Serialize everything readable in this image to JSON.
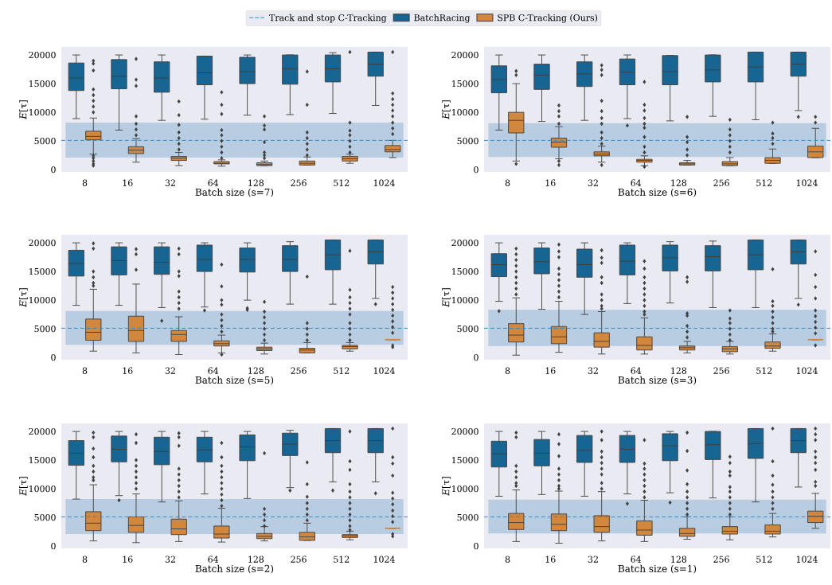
{
  "chart_data": [
    {
      "type": "box",
      "xlabel": "Batch size (s=7)",
      "ylabel": "*E*[τ]",
      "categories": [
        "8",
        "16",
        "32",
        "64",
        "128",
        "256",
        "512",
        "1024"
      ],
      "ylim": [
        -400,
        21400
      ],
      "yticks": [
        0,
        5000,
        10000,
        15000,
        20000
      ],
      "legend": "top",
      "marker": "diamond",
      "ref_lines": [
        {
          "axis": "y",
          "value": 5100,
          "label": "Track and stop C-Tracking",
          "color": "#3a8bbf",
          "line_style": "dashed"
        }
      ],
      "bands": [
        {
          "axis": "y",
          "from": 2100,
          "to": 8200,
          "color": "#b9cde2"
        }
      ],
      "series": [
        {
          "name": "BatchRacing",
          "color": "#176593",
          "boxes": [
            {
              "low": 8900,
              "q1": 13800,
              "median": 16000,
              "q3": 18600,
              "high": 20000
            },
            {
              "low": 6900,
              "q1": 14100,
              "median": 16300,
              "q3": 19200,
              "high": 20000
            },
            {
              "low": 8600,
              "q1": 13500,
              "median": 16000,
              "q3": 18800,
              "high": 20000
            },
            {
              "low": 8800,
              "q1": 14800,
              "median": 16900,
              "q3": 19800,
              "high": 19800
            },
            {
              "low": 9500,
              "q1": 15000,
              "median": 17100,
              "q3": 19600,
              "high": 20000
            },
            {
              "low": 9600,
              "q1": 14900,
              "median": 17600,
              "q3": 20000,
              "high": 20000
            },
            {
              "low": 9800,
              "q1": 15300,
              "median": 17600,
              "q3": 20000,
              "high": 20400
            },
            {
              "low": 11200,
              "q1": 16300,
              "median": 18400,
              "q3": 20500,
              "high": 20500
            }
          ]
        },
        {
          "name": "SPB C-Tracking (Ours)",
          "color": "#d1873e",
          "boxes": [
            {
              "low": 2700,
              "q1": 5200,
              "median": 5800,
              "q3": 6700,
              "high": 9000,
              "outliers": [
                19000,
                18500,
                17300,
                14000,
                13000,
                12000,
                11000,
                10000,
                2400,
                2000,
                1500,
                1000,
                700
              ]
            },
            {
              "low": 1300,
              "q1": 2800,
              "median": 3400,
              "q3": 4000,
              "high": 5400,
              "outliers": [
                19300,
                15700,
                14600,
                9300,
                8000,
                7000,
                6000
              ]
            },
            {
              "low": 700,
              "q1": 1600,
              "median": 2000,
              "q3": 2300,
              "high": 3000,
              "outliers": [
                11900,
                9500,
                7800,
                6500,
                5500,
                4500,
                3500
              ]
            },
            {
              "low": 600,
              "q1": 1000,
              "median": 1100,
              "q3": 1400,
              "high": 1700,
              "outliers": [
                13500,
                11300,
                9700,
                6900,
                6000,
                5000,
                4000,
                3000,
                2000
              ]
            },
            {
              "low": 700,
              "q1": 700,
              "median": 900,
              "q3": 1200,
              "high": 1500,
              "outliers": [
                9300,
                7700,
                7000,
                4800,
                3000,
                2500,
                2000
              ]
            },
            {
              "low": 800,
              "q1": 800,
              "median": 1100,
              "q3": 1500,
              "high": 2200,
              "outliers": [
                17100,
                11300,
                6500,
                5500,
                4500,
                3500,
                2500
              ]
            },
            {
              "low": 1100,
              "q1": 1500,
              "median": 1900,
              "q3": 2300,
              "high": 2700,
              "outliers": [
                20500,
                8200,
                6800,
                6000,
                5000,
                4000,
                3000
              ]
            },
            {
              "low": 2100,
              "q1": 3100,
              "median": 3500,
              "q3": 4200,
              "high": 5100,
              "outliers": [
                20500,
                13300,
                12300,
                11300,
                10300,
                9300,
                8200,
                7200,
                6200
              ]
            }
          ]
        }
      ]
    },
    {
      "type": "box",
      "xlabel": "Batch size (s=6)",
      "ylabel": "*E*[τ]",
      "categories": [
        "8",
        "16",
        "32",
        "64",
        "128",
        "256",
        "512",
        "1024"
      ],
      "ylim": [
        -400,
        21400
      ],
      "yticks": [
        0,
        5000,
        10000,
        15000,
        20000
      ],
      "marker": "diamond",
      "ref_lines": [
        {
          "axis": "y",
          "value": 5100,
          "color": "#3a8bbf",
          "line_style": "dashed"
        }
      ],
      "bands": [
        {
          "axis": "y",
          "from": 2200,
          "to": 8100,
          "color": "#b9cde2"
        }
      ],
      "series": [
        {
          "color": "#176593",
          "boxes": [
            {
              "low": 6900,
              "q1": 13400,
              "median": 15700,
              "q3": 18100,
              "high": 20000
            },
            {
              "low": 8400,
              "q1": 14000,
              "median": 16500,
              "q3": 18400,
              "high": 20000
            },
            {
              "low": 8600,
              "q1": 14500,
              "median": 16700,
              "q3": 18800,
              "high": 20000
            },
            {
              "low": 8900,
              "q1": 14800,
              "median": 17000,
              "q3": 19300,
              "high": 20000,
              "outliers": [
                7700
              ]
            },
            {
              "low": 8500,
              "q1": 14800,
              "median": 17100,
              "q3": 19900,
              "high": 19900
            },
            {
              "low": 9300,
              "q1": 15300,
              "median": 17400,
              "q3": 20000,
              "high": 20000
            },
            {
              "low": 8700,
              "q1": 15300,
              "median": 17900,
              "q3": 20500,
              "high": 20500
            },
            {
              "low": 10300,
              "q1": 16300,
              "median": 18400,
              "q3": 20500,
              "high": 20500,
              "outliers": [
                9200
              ]
            }
          ]
        },
        {
          "color": "#d1873e",
          "boxes": [
            {
              "low": 1500,
              "q1": 6400,
              "median": 8600,
              "q3": 10000,
              "high": 15000,
              "outliers": [
                17200,
                16500,
                1000
              ]
            },
            {
              "low": 1900,
              "q1": 3900,
              "median": 4800,
              "q3": 5500,
              "high": 7500,
              "outliers": [
                11200,
                10200,
                9300,
                8000,
                1500,
                800
              ]
            },
            {
              "low": 1300,
              "q1": 2400,
              "median": 2700,
              "q3": 3100,
              "high": 4100,
              "outliers": [
                18200,
                17400,
                16500,
                12000,
                10200,
                9000,
                8000,
                6500,
                5500,
                4500,
                800
              ]
            },
            {
              "low": 700,
              "q1": 1300,
              "median": 1600,
              "q3": 1800,
              "high": 2400,
              "outliers": [
                15300,
                11300,
                10300,
                9000,
                8000,
                7300,
                5700,
                4000,
                3000,
                500
              ]
            },
            {
              "low": 800,
              "q1": 800,
              "median": 1000,
              "q3": 1200,
              "high": 1600,
              "outliers": [
                9200,
                5700,
                4800,
                3500,
                2500
              ]
            },
            {
              "low": 700,
              "q1": 700,
              "median": 1000,
              "q3": 1400,
              "high": 2100,
              "outliers": [
                8700,
                7000,
                6000,
                5000,
                4000,
                3000
              ]
            },
            {
              "low": 1100,
              "q1": 1100,
              "median": 1600,
              "q3": 2100,
              "high": 3600,
              "outliers": [
                8200,
                6300,
                5500,
                4500
              ]
            },
            {
              "low": 2100,
              "q1": 2100,
              "median": 3100,
              "q3": 4100,
              "high": 7200,
              "outliers": [
                9200,
                8200
              ]
            }
          ]
        }
      ]
    },
    {
      "type": "box",
      "xlabel": "Batch size (s=5)",
      "ylabel": "*E*[τ]",
      "categories": [
        "8",
        "16",
        "32",
        "64",
        "128",
        "256",
        "512",
        "1024"
      ],
      "ylim": [
        -400,
        21400
      ],
      "yticks": [
        0,
        5000,
        10000,
        15000,
        20000
      ],
      "marker": "diamond",
      "ref_lines": [
        {
          "axis": "y",
          "value": 5100,
          "color": "#3a8bbf",
          "line_style": "dashed"
        }
      ],
      "bands": [
        {
          "axis": "y",
          "from": 2200,
          "to": 8100,
          "color": "#b9cde2"
        }
      ],
      "series": [
        {
          "color": "#176593",
          "boxes": [
            {
              "low": 9100,
              "q1": 14200,
              "median": 16400,
              "q3": 18700,
              "high": 20000
            },
            {
              "low": 9100,
              "q1": 14400,
              "median": 16900,
              "q3": 19300,
              "high": 20000
            },
            {
              "low": 8700,
              "q1": 14500,
              "median": 16600,
              "q3": 19300,
              "high": 20000,
              "outliers": [
                6400
              ]
            },
            {
              "low": 8800,
              "q1": 15000,
              "median": 17100,
              "q3": 19600,
              "high": 20000,
              "outliers": [
                8200
              ]
            },
            {
              "low": 10000,
              "q1": 14900,
              "median": 17100,
              "q3": 19100,
              "high": 20000,
              "outliers": [
                8600,
                8300
              ]
            },
            {
              "low": 9300,
              "q1": 15000,
              "median": 17100,
              "q3": 19500,
              "high": 20200
            },
            {
              "low": 9300,
              "q1": 15300,
              "median": 17900,
              "q3": 20500,
              "high": 20500
            },
            {
              "low": 10300,
              "q1": 16300,
              "median": 18400,
              "q3": 20500,
              "high": 20500,
              "outliers": [
                9300
              ]
            }
          ]
        },
        {
          "color": "#d1873e",
          "boxes": [
            {
              "low": 1100,
              "q1": 3000,
              "median": 4400,
              "q3": 6700,
              "high": 11900,
              "outliers": [
                19900,
                19000,
                15000,
                14000,
                13000,
                12500
              ]
            },
            {
              "low": 800,
              "q1": 2800,
              "median": 4700,
              "q3": 7200,
              "high": 12800,
              "outliers": [
                18900,
                18000,
                15300
              ]
            },
            {
              "low": 500,
              "q1": 2800,
              "median": 4000,
              "q3": 4700,
              "high": 7100,
              "outliers": [
                19000,
                18000,
                15000,
                14200,
                11500,
                10500,
                9500,
                8500
              ]
            },
            {
              "low": 800,
              "q1": 2000,
              "median": 2400,
              "q3": 2900,
              "high": 3900,
              "outliers": [
                16200,
                12400,
                10000,
                9200,
                7500,
                6500,
                5500,
                4500,
                500
              ]
            },
            {
              "low": 600,
              "q1": 1200,
              "median": 1500,
              "q3": 1800,
              "high": 2500,
              "outliers": [
                9700,
                8000,
                7000,
                6000,
                5000,
                4000,
                3000
              ]
            },
            {
              "low": 800,
              "q1": 800,
              "median": 1300,
              "q3": 1600,
              "high": 2600,
              "outliers": [
                14100,
                6000,
                5000,
                4000,
                3000
              ]
            },
            {
              "low": 1100,
              "q1": 1500,
              "median": 1900,
              "q3": 2100,
              "high": 2600,
              "outliers": [
                18600,
                11800,
                10500,
                9500,
                8500,
                7500,
                6000,
                5000,
                4000,
                3000
              ]
            },
            {
              "low": 3100,
              "q1": 3100,
              "median": 3100,
              "q3": 3100,
              "high": 3100,
              "outliers": [
                12300,
                11300,
                10300,
                9300,
                8300,
                7300,
                6300,
                5300,
                4300,
                2100,
                1800
              ]
            }
          ]
        }
      ]
    },
    {
      "type": "box",
      "xlabel": "Batch size (s=3)",
      "ylabel": "*E*[τ]",
      "categories": [
        "8",
        "16",
        "32",
        "64",
        "128",
        "256",
        "512",
        "1024"
      ],
      "ylim": [
        -400,
        21400
      ],
      "yticks": [
        0,
        5000,
        10000,
        15000,
        20000
      ],
      "marker": "diamond",
      "ref_lines": [
        {
          "axis": "y",
          "value": 5100,
          "color": "#3a8bbf",
          "line_style": "dashed"
        }
      ],
      "bands": [
        {
          "axis": "y",
          "from": 2000,
          "to": 8300,
          "color": "#b9cde2"
        }
      ],
      "series": [
        {
          "color": "#176593",
          "boxes": [
            {
              "low": 9800,
              "q1": 14100,
              "median": 16200,
              "q3": 18100,
              "high": 20000,
              "outliers": [
                8100
              ]
            },
            {
              "low": 8400,
              "q1": 14600,
              "median": 16700,
              "q3": 19100,
              "high": 20000
            },
            {
              "low": 7500,
              "q1": 14000,
              "median": 16200,
              "q3": 18900,
              "high": 20000
            },
            {
              "low": 9400,
              "q1": 14400,
              "median": 16800,
              "q3": 19600,
              "high": 20000
            },
            {
              "low": 9500,
              "q1": 15100,
              "median": 17400,
              "q3": 19600,
              "high": 20200
            },
            {
              "low": 8700,
              "q1": 15100,
              "median": 17600,
              "q3": 19500,
              "high": 20300
            },
            {
              "low": 8700,
              "q1": 15300,
              "median": 17900,
              "q3": 20500,
              "high": 20500
            },
            {
              "low": 10300,
              "q1": 16300,
              "median": 18400,
              "q3": 20500,
              "high": 20500,
              "outliers": [
                9200
              ]
            }
          ]
        },
        {
          "color": "#d1873e",
          "boxes": [
            {
              "low": 400,
              "q1": 2700,
              "median": 3900,
              "q3": 5900,
              "high": 10400,
              "outliers": [
                19000,
                18000,
                17000,
                16000,
                15000,
                14000,
                13000,
                12000,
                11000
              ]
            },
            {
              "low": 900,
              "q1": 2400,
              "median": 3600,
              "q3": 5400,
              "high": 9800,
              "outliers": [
                19700,
                18500,
                17500,
                15500,
                14500,
                13500,
                12500,
                11500,
                10500
              ]
            },
            {
              "low": 600,
              "q1": 1800,
              "median": 2800,
              "q3": 4300,
              "high": 8000,
              "outliers": [
                18700,
                17400,
                16500,
                14000,
                13000,
                11000,
                10000,
                9000,
                8500
              ]
            },
            {
              "low": 600,
              "q1": 1300,
              "median": 2100,
              "q3": 3600,
              "high": 6900,
              "outliers": [
                16800,
                15500,
                14000,
                13000,
                12000,
                11000,
                10000,
                9000,
                8000,
                7500
              ]
            },
            {
              "low": 800,
              "q1": 1300,
              "median": 1700,
              "q3": 2000,
              "high": 2800,
              "outliers": [
                14000,
                13200,
                7700,
                7300,
                5500,
                4500,
                3500
              ]
            },
            {
              "low": 600,
              "q1": 1000,
              "median": 1500,
              "q3": 1900,
              "high": 2800,
              "outliers": [
                8200,
                6800,
                6000,
                5000,
                4000,
                3000
              ]
            },
            {
              "low": 1100,
              "q1": 1600,
              "median": 2000,
              "q3": 2700,
              "high": 4100,
              "outliers": [
                15400,
                9800,
                9000,
                8000,
                7000,
                6000,
                5000,
                4500
              ]
            },
            {
              "low": 3100,
              "q1": 3100,
              "median": 3100,
              "q3": 3100,
              "high": 3100,
              "outliers": [
                18500,
                14400,
                12300,
                10300,
                8200,
                7200,
                6200,
                5200,
                4200,
                2100
              ]
            }
          ]
        }
      ]
    },
    {
      "type": "box",
      "xlabel": "Batch size (s=2)",
      "ylabel": "*E*[τ]",
      "categories": [
        "8",
        "16",
        "32",
        "64",
        "128",
        "256",
        "512",
        "1024"
      ],
      "ylim": [
        -400,
        21400
      ],
      "yticks": [
        0,
        5000,
        10000,
        15000,
        20000
      ],
      "marker": "diamond",
      "ref_lines": [
        {
          "axis": "y",
          "value": 5100,
          "color": "#3a8bbf",
          "line_style": "dashed"
        }
      ],
      "bands": [
        {
          "axis": "y",
          "from": 2100,
          "to": 8200,
          "color": "#b9cde2"
        }
      ],
      "series": [
        {
          "color": "#176593",
          "boxes": [
            {
              "low": 8200,
              "q1": 14100,
              "median": 16200,
              "q3": 18400,
              "high": 20000
            },
            {
              "low": 8800,
              "q1": 14700,
              "median": 16900,
              "q3": 19200,
              "high": 20000,
              "outliers": [
                8000
              ]
            },
            {
              "low": 7700,
              "q1": 14200,
              "median": 16500,
              "q3": 19000,
              "high": 20000
            },
            {
              "low": 9100,
              "q1": 14700,
              "median": 16800,
              "q3": 19000,
              "high": 20000
            },
            {
              "low": 8300,
              "q1": 14900,
              "median": 17300,
              "q3": 19400,
              "high": 20000
            },
            {
              "low": 10200,
              "q1": 15800,
              "median": 17800,
              "q3": 19700,
              "high": 20200,
              "outliers": [
                9700
              ]
            },
            {
              "low": 11200,
              "q1": 16300,
              "median": 18400,
              "q3": 20500,
              "high": 20500,
              "outliers": [
                9700
              ]
            },
            {
              "low": 11200,
              "q1": 16300,
              "median": 18400,
              "q3": 20500,
              "high": 20500,
              "outliers": [
                9200
              ]
            }
          ]
        },
        {
          "color": "#d1873e",
          "boxes": [
            {
              "low": 900,
              "q1": 2700,
              "median": 4000,
              "q3": 6000,
              "high": 10700,
              "outliers": [
                19800,
                19000,
                17000,
                15500,
                14000,
                13000,
                12000,
                11500
              ]
            },
            {
              "low": 600,
              "q1": 2400,
              "median": 3600,
              "q3": 5100,
              "high": 9100,
              "outliers": [
                19500,
                18000,
                15000,
                14000,
                13000,
                12000,
                11000,
                10000
              ]
            },
            {
              "low": 800,
              "q1": 2000,
              "median": 3000,
              "q3": 4700,
              "high": 7900,
              "outliers": [
                19700,
                19000,
                17500,
                13500,
                12500,
                11500,
                10500,
                9500,
                8500
              ]
            },
            {
              "low": 700,
              "q1": 1400,
              "median": 2100,
              "q3": 3500,
              "high": 6600,
              "outliers": [
                18000,
                15500,
                14000,
                13000,
                12000,
                11000,
                10000,
                9000,
                8000,
                7000
              ]
            },
            {
              "low": 900,
              "q1": 1300,
              "median": 1700,
              "q3": 2200,
              "high": 3400,
              "outliers": [
                16200,
                6500,
                5500,
                4500,
                3500
              ]
            },
            {
              "low": 1000,
              "q1": 1000,
              "median": 1600,
              "q3": 2400,
              "high": 4000,
              "outliers": [
                14600,
                10800,
                8600,
                7500,
                6500,
                5500,
                4500
              ]
            },
            {
              "low": 1100,
              "q1": 1500,
              "median": 1800,
              "q3": 2000,
              "high": 2600,
              "outliers": [
                20000,
                14800,
                13300,
                10800,
                9500,
                8500,
                7500,
                6500,
                5500,
                4500,
                3500,
                2800
              ]
            },
            {
              "low": 3100,
              "q1": 3100,
              "median": 3100,
              "q3": 3100,
              "high": 3100,
              "outliers": [
                20500,
                15500,
                14400,
                12300,
                9300,
                8300,
                7300,
                6200,
                5200,
                4200,
                2100,
                1700
              ]
            }
          ]
        }
      ]
    },
    {
      "type": "box",
      "xlabel": "Batch size (s=1)",
      "ylabel": "*E*[τ]",
      "categories": [
        "8",
        "16",
        "32",
        "64",
        "128",
        "256",
        "512",
        "1024"
      ],
      "ylim": [
        -400,
        21400
      ],
      "yticks": [
        0,
        5000,
        10000,
        15000,
        20000
      ],
      "marker": "diamond",
      "ref_lines": [
        {
          "axis": "y",
          "value": 5100,
          "color": "#3a8bbf",
          "line_style": "dashed"
        }
      ],
      "bands": [
        {
          "axis": "y",
          "from": 2200,
          "to": 8100,
          "color": "#b9cde2"
        }
      ],
      "series": [
        {
          "color": "#176593",
          "boxes": [
            {
              "low": 8700,
              "q1": 13800,
              "median": 16100,
              "q3": 18300,
              "high": 20000
            },
            {
              "low": 9000,
              "q1": 14000,
              "median": 16200,
              "q3": 18600,
              "high": 20000
            },
            {
              "low": 8700,
              "q1": 14600,
              "median": 16700,
              "q3": 19300,
              "high": 20000
            },
            {
              "low": 9100,
              "q1": 14600,
              "median": 16900,
              "q3": 19300,
              "high": 20000,
              "outliers": [
                7400
              ]
            },
            {
              "low": 9300,
              "q1": 14900,
              "median": 17500,
              "q3": 19600,
              "high": 20000,
              "outliers": [
                7600
              ]
            },
            {
              "low": 8400,
              "q1": 15100,
              "median": 17700,
              "q3": 20000,
              "high": 20000
            },
            {
              "low": 7700,
              "q1": 15300,
              "median": 17900,
              "q3": 20500,
              "high": 20500
            },
            {
              "low": 10300,
              "q1": 16300,
              "median": 18400,
              "q3": 20500,
              "high": 20500
            }
          ]
        },
        {
          "color": "#d1873e",
          "boxes": [
            {
              "low": 800,
              "q1": 2900,
              "median": 4100,
              "q3": 5700,
              "high": 9800,
              "outliers": [
                19800,
                19000,
                14000,
                13000,
                12000,
                11000,
                10500
              ]
            },
            {
              "low": 500,
              "q1": 2700,
              "median": 3800,
              "q3": 5600,
              "high": 9600,
              "outliers": [
                19500,
                17800,
                15700,
                13500,
                12500,
                11500,
                10500,
                10000
              ]
            },
            {
              "low": 900,
              "q1": 2400,
              "median": 3400,
              "q3": 5300,
              "high": 9500,
              "outliers": [
                20000,
                18500,
                16500,
                15500,
                14500,
                13500,
                12500,
                11000,
                10000
              ]
            },
            {
              "low": 800,
              "q1": 1900,
              "median": 2800,
              "q3": 4400,
              "high": 8000,
              "outliers": [
                18500,
                14400,
                13500,
                12500,
                11500,
                10500,
                9500,
                8500
              ]
            },
            {
              "low": 1200,
              "q1": 1700,
              "median": 2200,
              "q3": 3100,
              "high": 5100,
              "outliers": [
                19800,
                16600,
                13200,
                10800,
                9500,
                8500,
                7500,
                6500,
                5500
              ]
            },
            {
              "low": 1100,
              "q1": 2100,
              "median": 2600,
              "q3": 3400,
              "high": 5100,
              "outliers": [
                15600,
                14500,
                13000,
                12300,
                10300,
                9500,
                8500,
                7500,
                6500,
                5500
              ]
            },
            {
              "low": 1600,
              "q1": 2100,
              "median": 2600,
              "q3": 3700,
              "high": 5700,
              "outliers": [
                20500,
                14800,
                12300,
                10700,
                9500,
                8500,
                7500,
                6500
              ]
            },
            {
              "low": 3100,
              "q1": 4100,
              "median": 5200,
              "q3": 6100,
              "high": 9200,
              "outliers": [
                20500,
                19500,
                18500,
                16500,
                15500,
                14500,
                13300,
                11200,
                10500
              ]
            }
          ]
        }
      ]
    }
  ]
}
